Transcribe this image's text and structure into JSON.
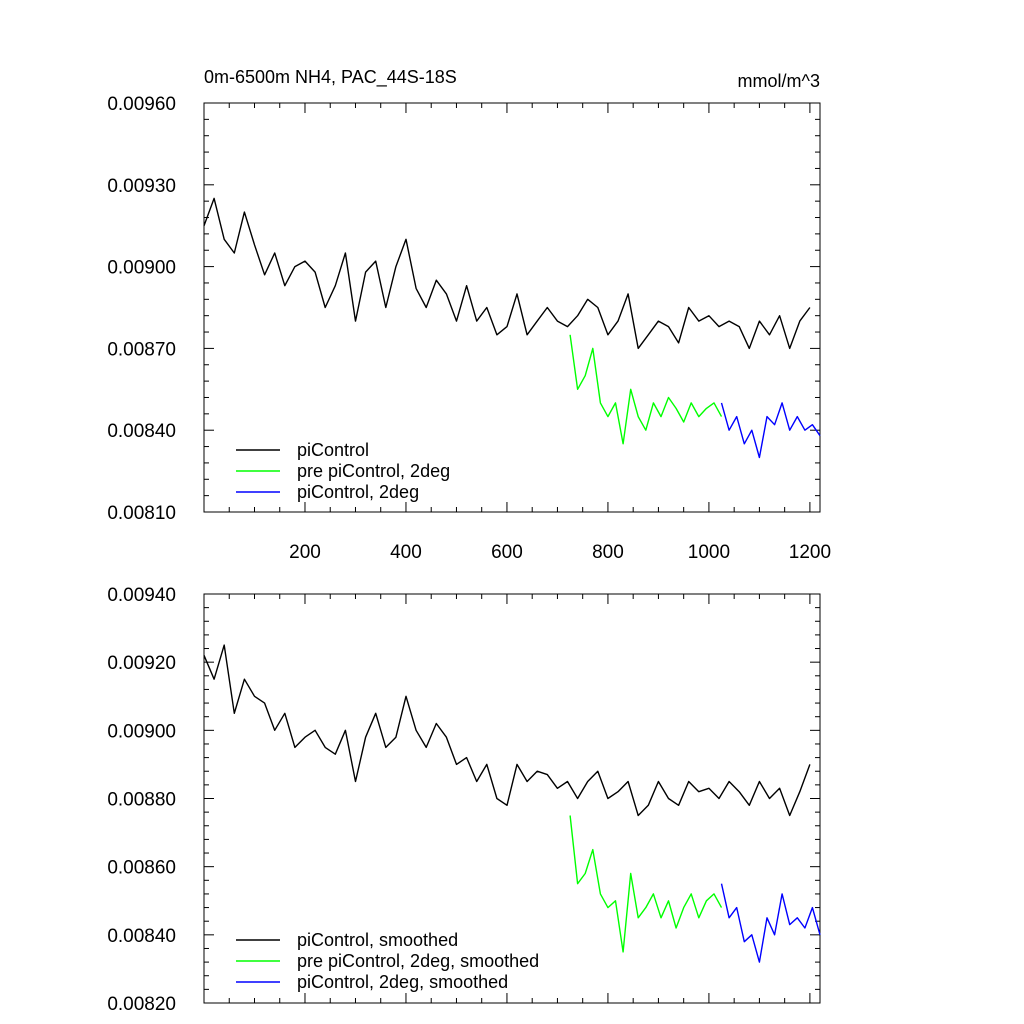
{
  "chart_data": [
    {
      "type": "line",
      "title": "0m-6500m NH4, PAC_44S-18S",
      "units": "mmol/m^3",
      "xlim": [
        0,
        1220
      ],
      "ylim": [
        0.0081,
        0.0096
      ],
      "x_tick_labels": [
        "200",
        "400",
        "600",
        "800",
        "1000",
        "1200"
      ],
      "y_tick_labels": [
        "0.00810",
        "0.00840",
        "0.00870",
        "0.00900",
        "0.00930",
        "0.00960"
      ],
      "legend_position": "bottom-left",
      "series": [
        {
          "name": "piControl",
          "color": "#000000",
          "x": [
            0,
            20,
            40,
            60,
            80,
            100,
            120,
            140,
            160,
            180,
            200,
            220,
            240,
            260,
            280,
            300,
            320,
            340,
            360,
            380,
            400,
            420,
            440,
            460,
            480,
            500,
            520,
            540,
            560,
            580,
            600,
            620,
            640,
            660,
            680,
            700,
            720,
            740,
            760,
            780,
            800,
            820,
            840,
            860,
            880,
            900,
            920,
            940,
            960,
            980,
            1000,
            1020,
            1040,
            1060,
            1080,
            1100,
            1120,
            1140,
            1160,
            1180,
            1200
          ],
          "y": [
            0.00915,
            0.00925,
            0.0091,
            0.00905,
            0.0092,
            0.00908,
            0.00897,
            0.00905,
            0.00893,
            0.009,
            0.00902,
            0.00898,
            0.00885,
            0.00893,
            0.00905,
            0.0088,
            0.00898,
            0.00902,
            0.00885,
            0.009,
            0.0091,
            0.00892,
            0.00885,
            0.00895,
            0.0089,
            0.0088,
            0.00893,
            0.0088,
            0.00885,
            0.00875,
            0.00878,
            0.0089,
            0.00875,
            0.0088,
            0.00885,
            0.0088,
            0.00878,
            0.00882,
            0.00888,
            0.00885,
            0.00875,
            0.0088,
            0.0089,
            0.0087,
            0.00875,
            0.0088,
            0.00878,
            0.00872,
            0.00885,
            0.0088,
            0.00882,
            0.00878,
            0.0088,
            0.00878,
            0.0087,
            0.0088,
            0.00875,
            0.00882,
            0.0087,
            0.0088,
            0.00885
          ]
        },
        {
          "name": "pre piControl, 2deg",
          "color": "#00ff00",
          "x": [
            725,
            740,
            755,
            770,
            785,
            800,
            815,
            830,
            845,
            860,
            875,
            890,
            905,
            920,
            935,
            950,
            965,
            980,
            995,
            1010,
            1025
          ],
          "y": [
            0.00875,
            0.00855,
            0.0086,
            0.0087,
            0.0085,
            0.00845,
            0.0085,
            0.00835,
            0.00855,
            0.00845,
            0.0084,
            0.0085,
            0.00845,
            0.00852,
            0.00848,
            0.00843,
            0.0085,
            0.00845,
            0.00848,
            0.0085,
            0.00845
          ]
        },
        {
          "name": "piControl, 2deg",
          "color": "#0000ff",
          "x": [
            1025,
            1040,
            1055,
            1070,
            1085,
            1100,
            1115,
            1130,
            1145,
            1160,
            1175,
            1190,
            1205,
            1220
          ],
          "y": [
            0.0085,
            0.0084,
            0.00845,
            0.00835,
            0.0084,
            0.0083,
            0.00845,
            0.00842,
            0.0085,
            0.0084,
            0.00845,
            0.0084,
            0.00842,
            0.00838
          ]
        }
      ]
    },
    {
      "type": "line",
      "xlim": [
        0,
        1220
      ],
      "ylim": [
        0.0082,
        0.0094
      ],
      "y_tick_labels": [
        "0.00820",
        "0.00840",
        "0.00860",
        "0.00880",
        "0.00900",
        "0.00920",
        "0.00940"
      ],
      "legend_position": "bottom-left",
      "series": [
        {
          "name": "piControl, smoothed",
          "color": "#000000",
          "x": [
            0,
            20,
            40,
            60,
            80,
            100,
            120,
            140,
            160,
            180,
            200,
            220,
            240,
            260,
            280,
            300,
            320,
            340,
            360,
            380,
            400,
            420,
            440,
            460,
            480,
            500,
            520,
            540,
            560,
            580,
            600,
            620,
            640,
            660,
            680,
            700,
            720,
            740,
            760,
            780,
            800,
            820,
            840,
            860,
            880,
            900,
            920,
            940,
            960,
            980,
            1000,
            1020,
            1040,
            1060,
            1080,
            1100,
            1120,
            1140,
            1160,
            1180,
            1200
          ],
          "y": [
            0.00922,
            0.00915,
            0.00925,
            0.00905,
            0.00915,
            0.0091,
            0.00908,
            0.009,
            0.00905,
            0.00895,
            0.00898,
            0.009,
            0.00895,
            0.00893,
            0.009,
            0.00885,
            0.00898,
            0.00905,
            0.00895,
            0.00898,
            0.0091,
            0.009,
            0.00895,
            0.00902,
            0.00898,
            0.0089,
            0.00892,
            0.00885,
            0.0089,
            0.0088,
            0.00878,
            0.0089,
            0.00885,
            0.00888,
            0.00887,
            0.00883,
            0.00885,
            0.0088,
            0.00885,
            0.00888,
            0.0088,
            0.00882,
            0.00885,
            0.00875,
            0.00878,
            0.00885,
            0.0088,
            0.00878,
            0.00885,
            0.00882,
            0.00883,
            0.0088,
            0.00885,
            0.00882,
            0.00878,
            0.00885,
            0.0088,
            0.00883,
            0.00875,
            0.00882,
            0.0089
          ]
        },
        {
          "name": "pre piControl, 2deg, smoothed",
          "color": "#00ff00",
          "x": [
            725,
            740,
            755,
            770,
            785,
            800,
            815,
            830,
            845,
            860,
            875,
            890,
            905,
            920,
            935,
            950,
            965,
            980,
            995,
            1010,
            1025
          ],
          "y": [
            0.00875,
            0.00855,
            0.00858,
            0.00865,
            0.00852,
            0.00848,
            0.0085,
            0.00835,
            0.00858,
            0.00845,
            0.00848,
            0.00852,
            0.00845,
            0.0085,
            0.00842,
            0.00848,
            0.00852,
            0.00845,
            0.0085,
            0.00852,
            0.00848
          ]
        },
        {
          "name": "piControl, 2deg, smoothed",
          "color": "#0000ff",
          "x": [
            1025,
            1040,
            1055,
            1070,
            1085,
            1100,
            1115,
            1130,
            1145,
            1160,
            1175,
            1190,
            1205,
            1220
          ],
          "y": [
            0.00855,
            0.00845,
            0.00848,
            0.00838,
            0.0084,
            0.00832,
            0.00845,
            0.0084,
            0.00852,
            0.00843,
            0.00845,
            0.00842,
            0.00848,
            0.0084
          ]
        }
      ]
    }
  ]
}
